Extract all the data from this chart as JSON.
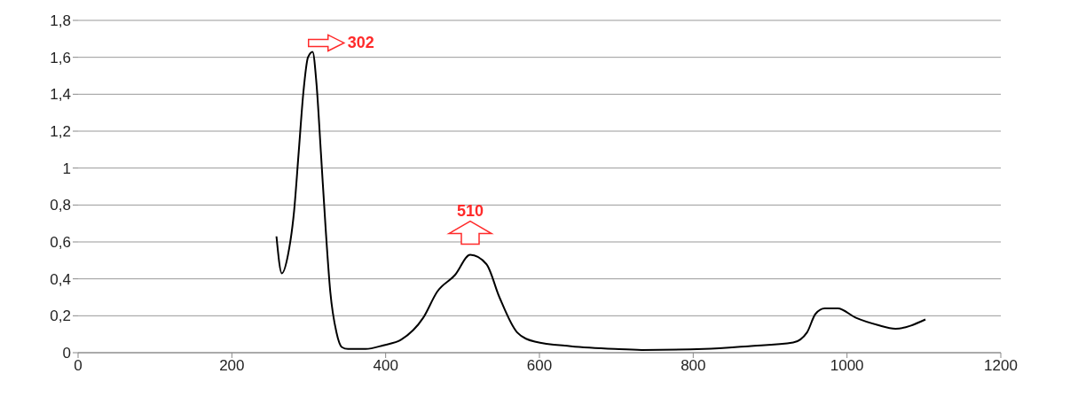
{
  "chart_data": {
    "type": "line",
    "color": "#000000",
    "x": [
      258,
      265,
      273,
      281,
      287,
      293,
      299,
      305,
      310,
      316,
      322,
      328,
      336,
      343,
      351,
      374,
      397,
      420,
      449,
      467,
      490,
      510,
      531,
      548,
      571,
      594,
      641,
      698,
      733,
      814,
      872,
      930,
      948,
      959,
      971,
      988,
      1011,
      1040,
      1063,
      1102
    ],
    "values": [
      0.63,
      0.43,
      0.53,
      0.77,
      1.09,
      1.41,
      1.6,
      1.63,
      1.46,
      1.07,
      0.67,
      0.33,
      0.11,
      0.03,
      0.02,
      0.02,
      0.04,
      0.07,
      0.19,
      0.33,
      0.42,
      0.53,
      0.48,
      0.3,
      0.11,
      0.06,
      0.035,
      0.02,
      0.015,
      0.02,
      0.035,
      0.055,
      0.11,
      0.21,
      0.24,
      0.24,
      0.19,
      0.15,
      0.13,
      0.18
    ],
    "xlim": [
      0,
      1200
    ],
    "xticks": [
      0,
      200,
      400,
      600,
      800,
      1000,
      1200
    ],
    "ylim": [
      0,
      1.8
    ],
    "yticks": [
      0,
      {
        "value": 0.2,
        "label": "0,2"
      },
      {
        "value": 0.4,
        "label": "0,4"
      },
      {
        "value": 0.6,
        "label": "0,6"
      },
      {
        "value": 0.8,
        "label": "0,8"
      },
      1,
      {
        "value": 1.2,
        "label": "1,2"
      },
      {
        "value": 1.4,
        "label": "1,4"
      },
      {
        "value": 1.6,
        "label": "1,6"
      },
      {
        "value": 1.8,
        "label": "1,8"
      }
    ],
    "grid": "y",
    "marker": "none",
    "line_style": "solid",
    "annotations": [
      {
        "text": "302",
        "x": 302,
        "y": 1.63
      },
      {
        "text": "510",
        "x": 510,
        "y": 0.53
      }
    ]
  }
}
